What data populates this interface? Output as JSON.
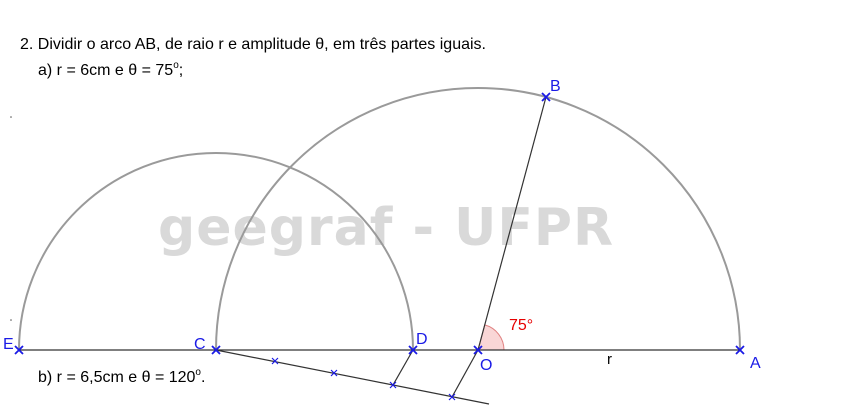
{
  "problem": {
    "title": "2. Dividir o arco AB, de raio r e amplitude θ, em três partes iguais.",
    "item_a": {
      "prefix": "a) r = 6cm e θ = 75",
      "degree": "o",
      "suffix": ";"
    },
    "item_b": {
      "prefix": "b) r = 6,5cm e θ = 120",
      "degree": "o",
      "suffix": "."
    }
  },
  "watermark": "geegraf - UFPR",
  "diagram": {
    "points": {
      "A": "A",
      "B": "B",
      "C": "C",
      "D": "D",
      "E": "E",
      "O": "O"
    },
    "radius_label": "r",
    "angle_label": "75°",
    "colors": {
      "point": "#1a1ae6",
      "arc": "#9a9a9a",
      "line": "#333333",
      "angle_fill": "#f9d6d6",
      "angle_text": "#e60000"
    }
  }
}
